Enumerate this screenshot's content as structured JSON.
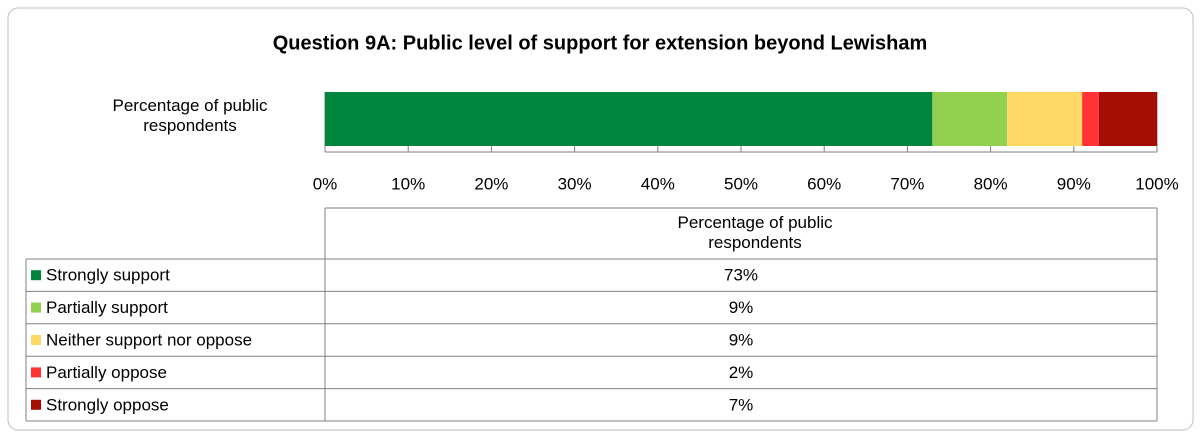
{
  "chart_data": {
    "type": "stacked-bar-horizontal",
    "title": "Question 9A: Public level of support for extension beyond Lewisham",
    "categories": [
      "Percentage of public respondents"
    ],
    "series": [
      {
        "name": "Strongly support",
        "color": "#00853e",
        "values": [
          73
        ],
        "value_labels": [
          "73%"
        ]
      },
      {
        "name": "Partially support",
        "color": "#92d050",
        "values": [
          9
        ],
        "value_labels": [
          "9%"
        ]
      },
      {
        "name": "Neither support nor oppose",
        "color": "#ffd966",
        "values": [
          9
        ],
        "value_labels": [
          "9%"
        ]
      },
      {
        "name": "Partially oppose",
        "color": "#ff3333",
        "values": [
          2
        ],
        "value_labels": [
          "2%"
        ]
      },
      {
        "name": "Strongly oppose",
        "color": "#a50d02",
        "values": [
          7
        ],
        "value_labels": [
          "7%"
        ]
      }
    ],
    "xlim": [
      0,
      100
    ],
    "xticks": [
      {
        "value": 0,
        "label": "0%"
      },
      {
        "value": 10,
        "label": "10%"
      },
      {
        "value": 20,
        "label": "20%"
      },
      {
        "value": 30,
        "label": "30%"
      },
      {
        "value": 40,
        "label": "40%"
      },
      {
        "value": 50,
        "label": "50%"
      },
      {
        "value": 60,
        "label": "60%"
      },
      {
        "value": 70,
        "label": "70%"
      },
      {
        "value": 80,
        "label": "80%"
      },
      {
        "value": 90,
        "label": "90%"
      },
      {
        "value": 100,
        "label": "100%"
      }
    ],
    "grid": true
  }
}
